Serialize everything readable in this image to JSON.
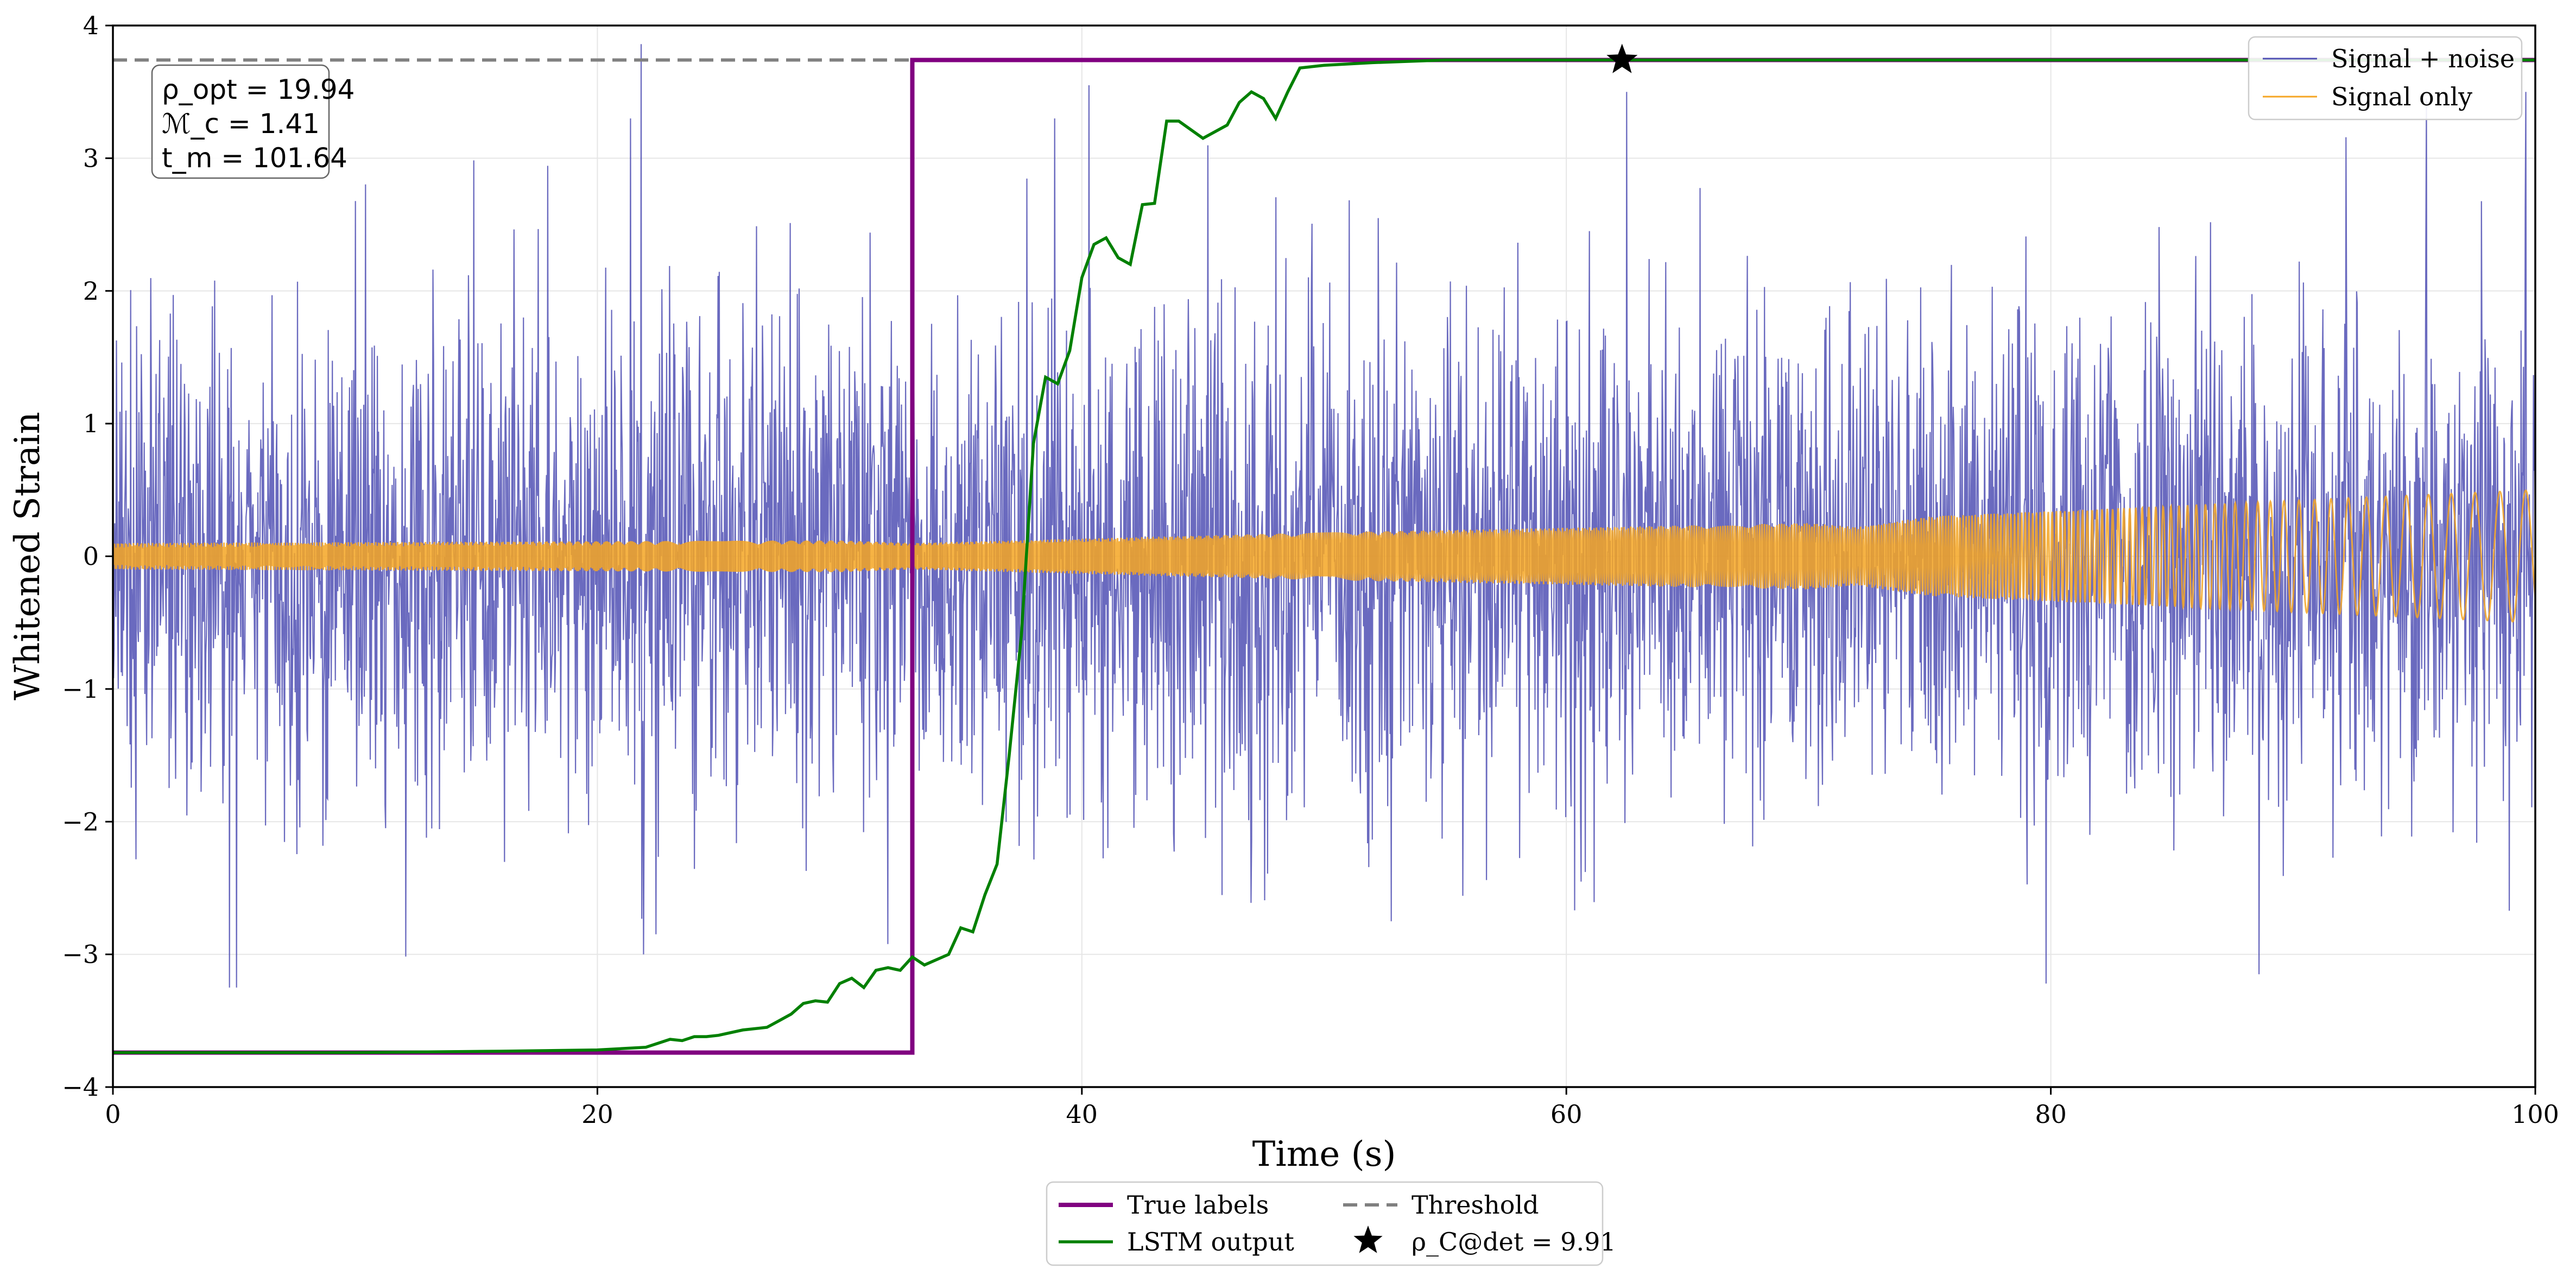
{
  "chart_data": {
    "type": "line",
    "title": "",
    "xlabel": "Time (s)",
    "ylabel": "Whitened Strain",
    "xlim": [
      0,
      100
    ],
    "ylim": [
      -4,
      4
    ],
    "grid": true,
    "xticks": [
      0,
      20,
      40,
      60,
      80,
      100
    ],
    "xtick_labels": [
      "0",
      "20",
      "40",
      "60",
      "80",
      "100"
    ],
    "yticks": [
      -4,
      -3,
      -2,
      -1,
      0,
      1,
      2,
      3,
      4
    ],
    "ytick_labels": [
      "−4",
      "−3",
      "−2",
      "−1",
      "0",
      "1",
      "2",
      "3",
      "4"
    ],
    "series": [
      {
        "name": "Signal + noise",
        "color": "#5050b4",
        "kind": "noise",
        "amplitude_sd": 0.95,
        "n_points": 4096,
        "seed": 20,
        "spikes": [
          {
            "x": 4.8,
            "y": -3.25
          },
          {
            "x": 5.1,
            "y": -3.25
          },
          {
            "x": 21.8,
            "y": 3.86
          },
          {
            "x": 21.9,
            "y": -3.0
          },
          {
            "x": 40.3,
            "y": 3.55
          },
          {
            "x": 62.5,
            "y": 3.5
          },
          {
            "x": 79.8,
            "y": -3.22
          },
          {
            "x": 88.6,
            "y": -3.15
          },
          {
            "x": 95.5,
            "y": 3.45
          },
          {
            "x": 99.6,
            "y": 3.5
          }
        ]
      },
      {
        "name": "Signal only",
        "color": "#f5a623",
        "kind": "chirp",
        "envelope_x": [
          0,
          30,
          33,
          50,
          70,
          72,
          75,
          85,
          100
        ],
        "envelope_y": [
          0.1,
          0.12,
          0.1,
          0.18,
          0.25,
          0.22,
          0.3,
          0.38,
          0.5
        ],
        "freq_x": [
          0,
          75,
          85,
          90,
          95,
          100
        ],
        "freq_y": [
          18,
          9,
          3,
          1.6,
          1.1,
          0.9
        ]
      },
      {
        "name": "True labels",
        "color": "#800080",
        "kind": "step",
        "x": [
          0,
          33,
          33,
          100
        ],
        "y": [
          -3.74,
          -3.74,
          3.74,
          3.74
        ]
      },
      {
        "name": "LSTM output",
        "color": "#008000",
        "kind": "line",
        "x": [
          0,
          10,
          16,
          20,
          22,
          22.5,
          23,
          23.5,
          24,
          24.5,
          25,
          26,
          27,
          27.5,
          28,
          28.5,
          29,
          29.5,
          30,
          30.5,
          31,
          31.5,
          32,
          32.5,
          33,
          33.5,
          34,
          34.5,
          35,
          35.5,
          36,
          36.5,
          37,
          37.5,
          38,
          38.5,
          39,
          39.5,
          40,
          40.5,
          41,
          41.5,
          42,
          42.5,
          43,
          43.5,
          44,
          45,
          46,
          46.5,
          47,
          47.5,
          48,
          48.5,
          49,
          50,
          52,
          55,
          60,
          100
        ],
        "y": [
          -3.74,
          -3.74,
          -3.73,
          -3.72,
          -3.7,
          -3.67,
          -3.64,
          -3.65,
          -3.62,
          -3.62,
          -3.61,
          -3.57,
          -3.55,
          -3.5,
          -3.45,
          -3.37,
          -3.35,
          -3.36,
          -3.22,
          -3.18,
          -3.25,
          -3.12,
          -3.1,
          -3.12,
          -3.02,
          -3.08,
          -3.04,
          -3.0,
          -2.8,
          -2.83,
          -2.55,
          -2.32,
          -1.5,
          -0.6,
          0.85,
          1.35,
          1.3,
          1.55,
          2.1,
          2.35,
          2.4,
          2.25,
          2.2,
          2.65,
          2.66,
          3.28,
          3.28,
          3.15,
          3.25,
          3.42,
          3.5,
          3.45,
          3.3,
          3.5,
          3.68,
          3.7,
          3.72,
          3.74,
          3.74,
          3.74
        ]
      },
      {
        "name": "Threshold",
        "color": "#808080",
        "kind": "hline",
        "y": 3.74
      }
    ],
    "marker": {
      "name": "ρ_C@det = 9.91",
      "x": 62.3,
      "y": 3.74,
      "symbol": "star",
      "color": "#000000"
    },
    "legend_upper": {
      "placement": "top-right",
      "entries": [
        "Signal + noise",
        "Signal only"
      ]
    },
    "legend_lower": {
      "placement": "bottom-center-outside",
      "entries": [
        "True labels",
        "Threshold",
        "LSTM output",
        "ρ_C@det = 9.91"
      ]
    },
    "annotation": {
      "placement": "top-left",
      "rho_opt": "ρ_opt = 19.94",
      "chirp_mass": "ℳ_c = 1.41",
      "t_merge": "t_m = 101.64"
    }
  }
}
